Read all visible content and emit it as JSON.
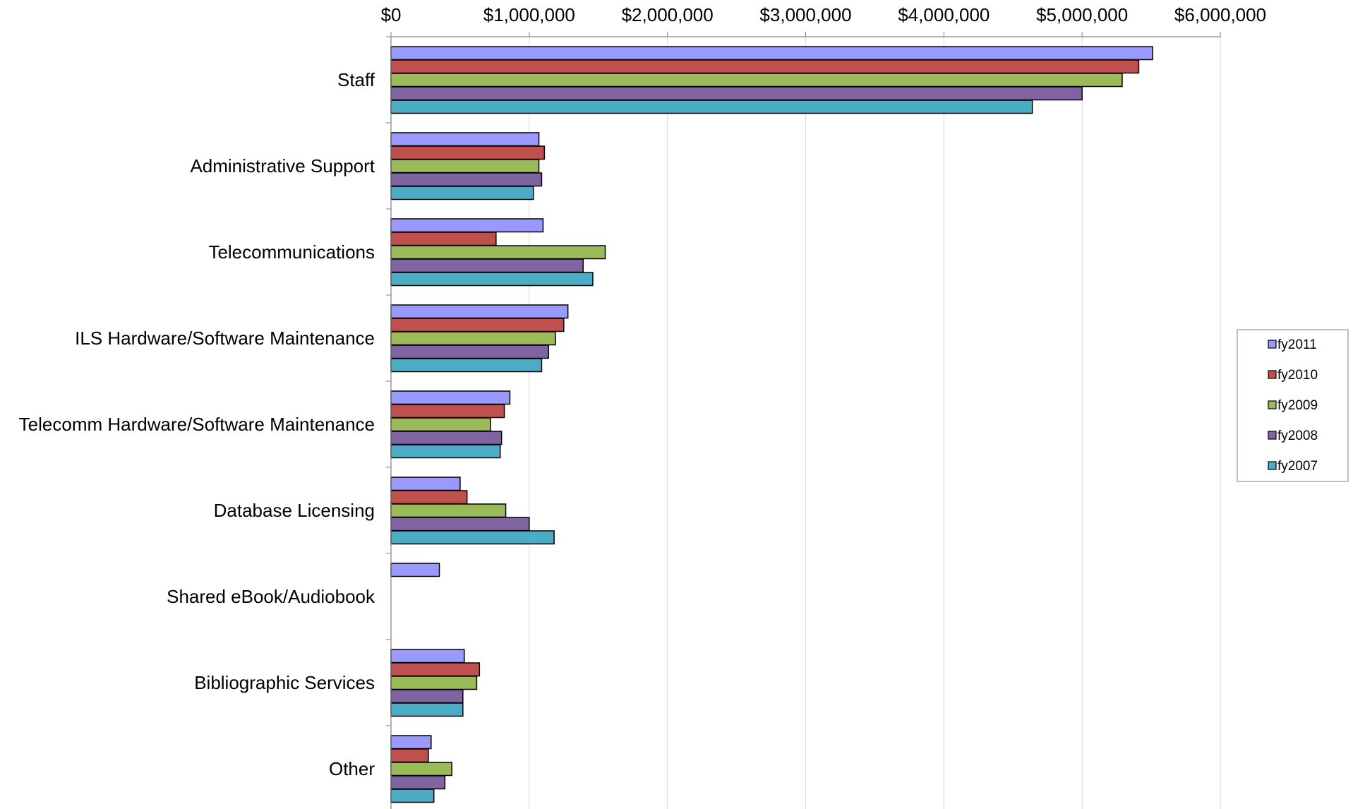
{
  "chart_data": {
    "type": "bar",
    "orientation": "horizontal",
    "categories": [
      "Staff",
      "Administrative Support",
      "Telecommunications",
      "ILS Hardware/Software Maintenance",
      "Telecomm Hardware/Software Maintenance",
      "Database Licensing",
      "Shared eBook/Audiobook",
      "Bibliographic Services",
      "Other"
    ],
    "series": [
      {
        "name": "fy2011",
        "color": "#9999FF",
        "values": [
          5510000,
          1070000,
          1100000,
          1280000,
          860000,
          500000,
          350000,
          530000,
          290000
        ]
      },
      {
        "name": "fy2010",
        "color": "#C0504D",
        "values": [
          5410000,
          1110000,
          760000,
          1250000,
          820000,
          550000,
          0,
          640000,
          270000
        ]
      },
      {
        "name": "fy2009",
        "color": "#9BBB59",
        "values": [
          5290000,
          1070000,
          1550000,
          1190000,
          720000,
          830000,
          0,
          620000,
          440000
        ]
      },
      {
        "name": "fy2008",
        "color": "#8064A2",
        "values": [
          5000000,
          1090000,
          1390000,
          1140000,
          800000,
          1000000,
          0,
          520000,
          390000
        ]
      },
      {
        "name": "fy2007",
        "color": "#4BACC6",
        "values": [
          4640000,
          1030000,
          1460000,
          1090000,
          790000,
          1180000,
          0,
          520000,
          310000
        ]
      }
    ],
    "xlim": [
      0,
      6000000
    ],
    "ticks": [
      0,
      1000000,
      2000000,
      3000000,
      4000000,
      5000000,
      6000000
    ],
    "tick_labels": [
      "$0",
      "$1,000,000",
      "$2,000,000",
      "$3,000,000",
      "$4,000,000",
      "$5,000,000",
      "$6,000,000"
    ],
    "axis_position": "top",
    "grid": true,
    "legend_position": "right",
    "title": "",
    "xlabel": "",
    "ylabel": ""
  }
}
